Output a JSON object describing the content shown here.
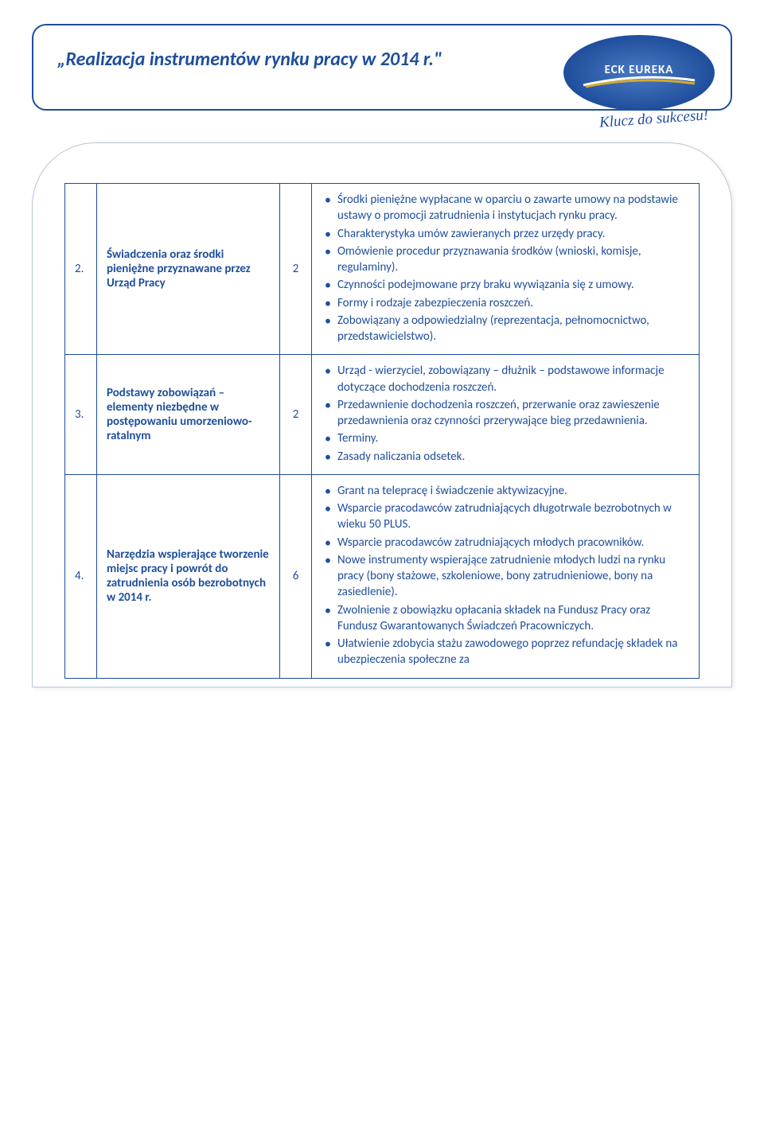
{
  "header": {
    "title": "„Realizacja instrumentów rynku pracy w 2014 r.\"",
    "logo_text": "ECK EUREKA",
    "logo_tagline": "Klucz do sukcesu!"
  },
  "colors": {
    "primary": "#1f4e9c",
    "logo_gradient_inner": "#4a7bc4",
    "logo_gradient_outer": "#1f4e9c",
    "swoosh_gold": "#d4a934",
    "swoosh_white": "#ffffff",
    "border_light": "#b8c5d9",
    "background": "#ffffff"
  },
  "rows": [
    {
      "num": "2.",
      "title": "Świadczenia oraz środki pieniężne przyznawane przez Urząd Pracy",
      "hours": "2",
      "items": [
        "Środki pieniężne wypłacane w oparciu o zawarte umowy na podstawie ustawy o promocji zatrudnienia i instytucjach rynku pracy.",
        "Charakterystyka umów zawieranych przez urzędy pracy.",
        "Omówienie procedur przyznawania środków (wnioski, komisje, regulaminy).",
        "Czynności podejmowane przy braku wywiązania się z umowy.",
        "Formy i rodzaje zabezpieczenia roszczeń.",
        "Zobowiązany a odpowiedzialny (reprezentacja, pełnomocnictwo, przedstawicielstwo)."
      ]
    },
    {
      "num": "3.",
      "title": "Podstawy zobowiązań – elementy niezbędne w postępowaniu umorzeniowo-ratalnym",
      "hours": "2",
      "items": [
        "Urząd - wierzyciel, zobowiązany – dłużnik – podstawowe informacje dotyczące dochodzenia roszczeń.",
        "Przedawnienie dochodzenia roszczeń, przerwanie oraz zawieszenie przedawnienia oraz czynności przerywające bieg przedawnienia.",
        "Terminy.",
        "Zasady naliczania odsetek."
      ]
    },
    {
      "num": "4.",
      "title": "Narzędzia wspierające tworzenie miejsc pracy i powrót do zatrudnienia osób bezrobotnych w 2014 r.",
      "hours": "6",
      "items": [
        "Grant na telepracę i świadczenie aktywizacyjne.",
        "Wsparcie pracodawców zatrudniających długotrwale bezrobotnych w wieku 50 PLUS.",
        "Wsparcie pracodawców zatrudniających młodych pracowników.",
        "Nowe instrumenty wspierające zatrudnienie młodych ludzi na rynku pracy (bony stażowe, szkoleniowe, bony zatrudnieniowe, bony na zasiedlenie).",
        "Zwolnienie z obowiązku opłacania składek na Fundusz Pracy oraz Fundusz Gwarantowanych Świadczeń Pracowniczych.",
        "Ułatwienie zdobycia stażu zawodowego poprzez refundację składek na ubezpieczenia społeczne za"
      ]
    }
  ]
}
